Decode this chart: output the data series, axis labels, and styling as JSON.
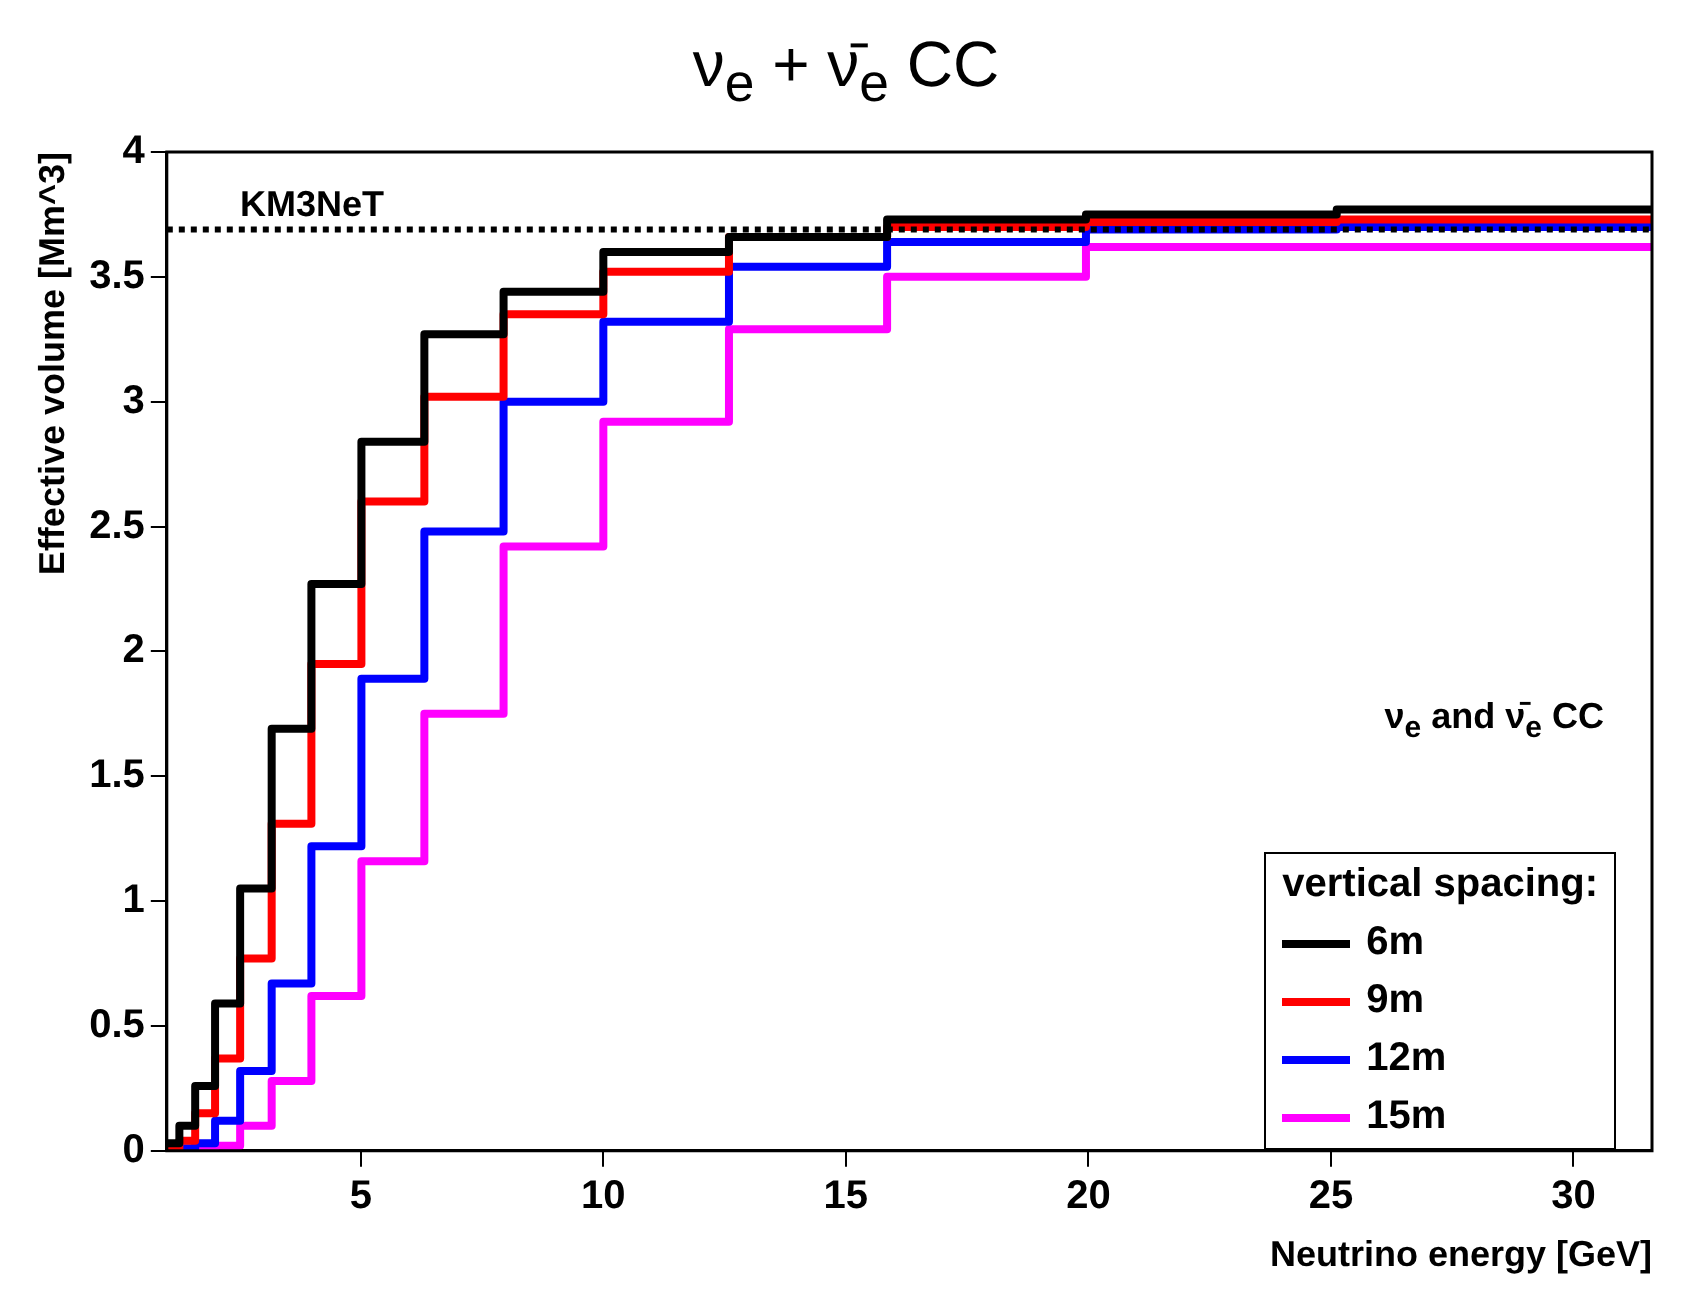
{
  "chart_data": {
    "type": "histogram",
    "title": "ν$_{e}$ + ν̄$_{e}$  CC",
    "xlabel": "Neutrino energy [GeV]",
    "ylabel": "Effective volume [Mm^3]",
    "legend_title": "vertical spacing:",
    "annotations": [
      "KM3NeT",
      "ν$_{e}$ and ν̄$_{e}$ CC"
    ],
    "bins": [
      1,
      1.259,
      1.585,
      1.995,
      2.512,
      3.162,
      3.981,
      5.012,
      6.31,
      7.943,
      10,
      12.59,
      15.85,
      19.95,
      25.12,
      31.62
    ],
    "series": [
      {
        "name": "6m",
        "color": "#000000",
        "values": [
          0.03,
          0.1,
          0.26,
          0.59,
          1.05,
          1.69,
          2.27,
          2.84,
          3.27,
          3.44,
          3.6,
          3.66,
          3.73,
          3.75,
          3.77
        ]
      },
      {
        "name": "9m",
        "color": "#ff0000",
        "values": [
          0.01,
          0.04,
          0.15,
          0.37,
          0.77,
          1.31,
          1.95,
          2.6,
          3.02,
          3.35,
          3.52,
          3.66,
          3.7,
          3.72,
          3.73
        ]
      },
      {
        "name": "12m",
        "color": "#0000ff",
        "values": [
          0,
          0.01,
          0.03,
          0.12,
          0.32,
          0.67,
          1.22,
          1.89,
          2.48,
          3,
          3.32,
          3.54,
          3.64,
          3.69,
          3.7
        ]
      },
      {
        "name": "15m",
        "color": "#ff00ff",
        "values": [
          0,
          0,
          0.01,
          0.02,
          0.1,
          0.28,
          0.62,
          1.16,
          1.75,
          2.42,
          2.92,
          3.29,
          3.5,
          3.62,
          3.62
        ]
      }
    ],
    "xlim": [
      1,
      31.62
    ],
    "xticks": [
      5,
      10,
      15,
      20,
      25,
      30
    ],
    "ylim": [
      0,
      4
    ],
    "yticks": [
      0,
      0.5,
      1,
      1.5,
      2,
      2.5,
      3,
      3.5,
      4
    ],
    "ref_lines": [
      {
        "axis": "y",
        "value": 3.69,
        "label": null,
        "color": "#000000",
        "line_style": "dotted"
      }
    ],
    "grid": false,
    "legend": "bottom right",
    "marker": "none",
    "line_style": "solid"
  }
}
